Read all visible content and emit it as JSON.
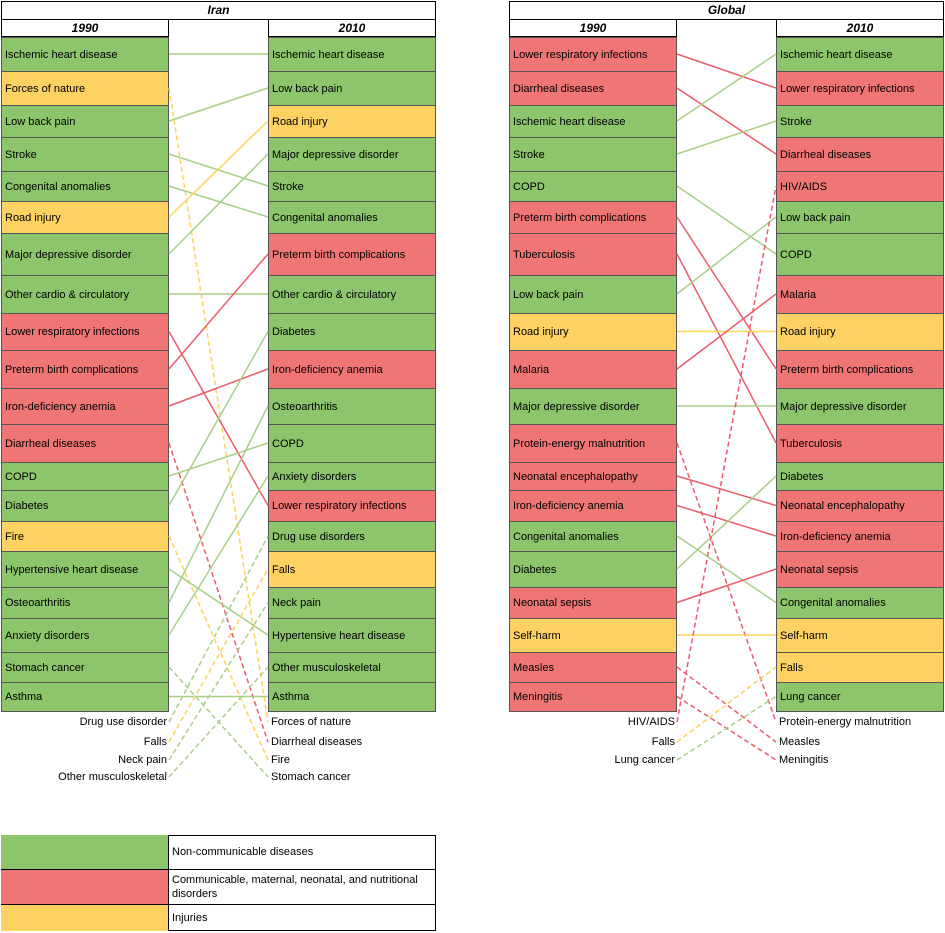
{
  "panels": [
    {
      "id": "iran",
      "title": "Iran",
      "col1_label": "1990",
      "col2_label": "2010",
      "left": [
        {
          "label": "Ischemic heart disease",
          "cat": "ncd"
        },
        {
          "label": "Forces of nature",
          "cat": "inj"
        },
        {
          "label": "Low back pain",
          "cat": "ncd"
        },
        {
          "label": "Stroke",
          "cat": "ncd"
        },
        {
          "label": "Congenital anomalies",
          "cat": "ncd"
        },
        {
          "label": "Road injury",
          "cat": "inj"
        },
        {
          "label": "Major depressive disorder",
          "cat": "ncd"
        },
        {
          "label": "Other cardio & circulatory",
          "cat": "ncd"
        },
        {
          "label": "Lower respiratory infections",
          "cat": "cmnn"
        },
        {
          "label": "Preterm birth complications",
          "cat": "cmnn"
        },
        {
          "label": "Iron-deficiency anemia",
          "cat": "cmnn"
        },
        {
          "label": "Diarrheal diseases",
          "cat": "cmnn"
        },
        {
          "label": "COPD",
          "cat": "ncd"
        },
        {
          "label": "Diabetes",
          "cat": "ncd"
        },
        {
          "label": "Fire",
          "cat": "inj"
        },
        {
          "label": "Hypertensive heart disease",
          "cat": "ncd"
        },
        {
          "label": "Osteoarthritis",
          "cat": "ncd"
        },
        {
          "label": "Anxiety disorders",
          "cat": "ncd"
        },
        {
          "label": "Stomach cancer",
          "cat": "ncd"
        },
        {
          "label": "Asthma",
          "cat": "ncd"
        }
      ],
      "right": [
        {
          "label": "Ischemic heart disease",
          "cat": "ncd"
        },
        {
          "label": "Low back pain",
          "cat": "ncd"
        },
        {
          "label": "Road injury",
          "cat": "inj"
        },
        {
          "label": "Major depressive disorder",
          "cat": "ncd"
        },
        {
          "label": "Stroke",
          "cat": "ncd"
        },
        {
          "label": "Congenital anomalies",
          "cat": "ncd"
        },
        {
          "label": "Preterm birth complications",
          "cat": "cmnn"
        },
        {
          "label": "Other cardio & circulatory",
          "cat": "ncd"
        },
        {
          "label": "Diabetes",
          "cat": "ncd"
        },
        {
          "label": "Iron-deficiency anemia",
          "cat": "cmnn"
        },
        {
          "label": "Osteoarthritis",
          "cat": "ncd"
        },
        {
          "label": "COPD",
          "cat": "ncd"
        },
        {
          "label": "Anxiety disorders",
          "cat": "ncd"
        },
        {
          "label": "Lower respiratory infections",
          "cat": "cmnn"
        },
        {
          "label": "Drug use disorders",
          "cat": "ncd"
        },
        {
          "label": "Falls",
          "cat": "inj"
        },
        {
          "label": "Neck pain",
          "cat": "ncd"
        },
        {
          "label": "Hypertensive heart disease",
          "cat": "ncd"
        },
        {
          "label": "Other musculoskeletal",
          "cat": "ncd"
        },
        {
          "label": "Asthma",
          "cat": "ncd"
        }
      ],
      "left_extra": [
        {
          "label": "Drug use disorder",
          "cat": "ncd"
        },
        {
          "label": "Falls",
          "cat": "inj"
        },
        {
          "label": "Neck pain",
          "cat": "ncd"
        },
        {
          "label": "Other musculoskeletal",
          "cat": "ncd"
        }
      ],
      "right_extra": [
        {
          "label": "Forces of nature",
          "cat": "inj"
        },
        {
          "label": "Diarrheal diseases",
          "cat": "cmnn"
        },
        {
          "label": "Fire",
          "cat": "inj"
        },
        {
          "label": "Stomach cancer",
          "cat": "ncd"
        }
      ],
      "links": [
        {
          "from": "L0",
          "to": "R0",
          "cat": "ncd"
        },
        {
          "from": "L1",
          "to": "RX0",
          "cat": "inj",
          "dashed": true
        },
        {
          "from": "L2",
          "to": "R1",
          "cat": "ncd"
        },
        {
          "from": "L3",
          "to": "R4",
          "cat": "ncd"
        },
        {
          "from": "L4",
          "to": "R5",
          "cat": "ncd"
        },
        {
          "from": "L5",
          "to": "R2",
          "cat": "inj"
        },
        {
          "from": "L6",
          "to": "R3",
          "cat": "ncd"
        },
        {
          "from": "L7",
          "to": "R7",
          "cat": "ncd"
        },
        {
          "from": "L8",
          "to": "R13",
          "cat": "cmnn"
        },
        {
          "from": "L9",
          "to": "R6",
          "cat": "cmnn"
        },
        {
          "from": "L10",
          "to": "R9",
          "cat": "cmnn"
        },
        {
          "from": "L11",
          "to": "RX1",
          "cat": "cmnn",
          "dashed": true
        },
        {
          "from": "L12",
          "to": "R11",
          "cat": "ncd"
        },
        {
          "from": "L13",
          "to": "R8",
          "cat": "ncd"
        },
        {
          "from": "L14",
          "to": "RX2",
          "cat": "inj",
          "dashed": true
        },
        {
          "from": "L15",
          "to": "R17",
          "cat": "ncd"
        },
        {
          "from": "L16",
          "to": "R10",
          "cat": "ncd"
        },
        {
          "from": "L17",
          "to": "R12",
          "cat": "ncd"
        },
        {
          "from": "L18",
          "to": "RX3",
          "cat": "ncd",
          "dashed": true
        },
        {
          "from": "L19",
          "to": "R19",
          "cat": "ncd"
        },
        {
          "from": "LX0",
          "to": "R14",
          "cat": "ncd",
          "dashed": true
        },
        {
          "from": "LX1",
          "to": "R15",
          "cat": "inj",
          "dashed": true
        },
        {
          "from": "LX2",
          "to": "R16",
          "cat": "ncd",
          "dashed": true
        },
        {
          "from": "LX3",
          "to": "R18",
          "cat": "ncd",
          "dashed": true
        }
      ]
    },
    {
      "id": "global",
      "title": "Global",
      "col1_label": "1990",
      "col2_label": "2010",
      "left": [
        {
          "label": "Lower respiratory infections",
          "cat": "cmnn"
        },
        {
          "label": "Diarrheal diseases",
          "cat": "cmnn"
        },
        {
          "label": "Ischemic heart disease",
          "cat": "ncd"
        },
        {
          "label": "Stroke",
          "cat": "ncd"
        },
        {
          "label": "COPD",
          "cat": "ncd"
        },
        {
          "label": "Preterm birth complications",
          "cat": "cmnn"
        },
        {
          "label": "Tuberculosis",
          "cat": "cmnn"
        },
        {
          "label": "Low back pain",
          "cat": "ncd"
        },
        {
          "label": "Road injury",
          "cat": "inj"
        },
        {
          "label": "Malaria",
          "cat": "cmnn"
        },
        {
          "label": "Major depressive disorder",
          "cat": "ncd"
        },
        {
          "label": "Protein-energy malnutrition",
          "cat": "cmnn"
        },
        {
          "label": "Neonatal encephalopathy",
          "cat": "cmnn"
        },
        {
          "label": "Iron-deficiency anemia",
          "cat": "cmnn"
        },
        {
          "label": "Congenital anomalies",
          "cat": "ncd"
        },
        {
          "label": "Diabetes",
          "cat": "ncd"
        },
        {
          "label": "Neonatal sepsis",
          "cat": "cmnn"
        },
        {
          "label": "Self-harm",
          "cat": "inj"
        },
        {
          "label": "Measles",
          "cat": "cmnn"
        },
        {
          "label": "Meningitis",
          "cat": "cmnn"
        }
      ],
      "right": [
        {
          "label": "Ischemic heart disease",
          "cat": "ncd"
        },
        {
          "label": "Lower respiratory infections",
          "cat": "cmnn"
        },
        {
          "label": "Stroke",
          "cat": "ncd"
        },
        {
          "label": "Diarrheal diseases",
          "cat": "cmnn"
        },
        {
          "label": "HIV/AIDS",
          "cat": "cmnn"
        },
        {
          "label": "Low back pain",
          "cat": "ncd"
        },
        {
          "label": "COPD",
          "cat": "ncd"
        },
        {
          "label": "Malaria",
          "cat": "cmnn"
        },
        {
          "label": "Road injury",
          "cat": "inj"
        },
        {
          "label": "Preterm birth complications",
          "cat": "cmnn"
        },
        {
          "label": "Major depressive disorder",
          "cat": "ncd"
        },
        {
          "label": "Tuberculosis",
          "cat": "cmnn"
        },
        {
          "label": "Diabetes",
          "cat": "ncd"
        },
        {
          "label": "Neonatal encephalopathy",
          "cat": "cmnn"
        },
        {
          "label": "Iron-deficiency anemia",
          "cat": "cmnn"
        },
        {
          "label": "Neonatal sepsis",
          "cat": "cmnn"
        },
        {
          "label": "Congenital anomalies",
          "cat": "ncd"
        },
        {
          "label": "Self-harm",
          "cat": "inj"
        },
        {
          "label": "Falls",
          "cat": "inj"
        },
        {
          "label": "Lung cancer",
          "cat": "ncd"
        }
      ],
      "left_extra": [
        {
          "label": "HIV/AIDS",
          "cat": "cmnn"
        },
        {
          "label": "Falls",
          "cat": "inj"
        },
        {
          "label": "Lung cancer",
          "cat": "ncd"
        }
      ],
      "right_extra": [
        {
          "label": "Protein-energy malnutrition",
          "cat": "cmnn"
        },
        {
          "label": "Measles",
          "cat": "cmnn"
        },
        {
          "label": "Meningitis",
          "cat": "cmnn"
        }
      ],
      "links": [
        {
          "from": "L0",
          "to": "R1",
          "cat": "cmnn"
        },
        {
          "from": "L1",
          "to": "R3",
          "cat": "cmnn"
        },
        {
          "from": "L2",
          "to": "R0",
          "cat": "ncd"
        },
        {
          "from": "L3",
          "to": "R2",
          "cat": "ncd"
        },
        {
          "from": "L4",
          "to": "R6",
          "cat": "ncd"
        },
        {
          "from": "L5",
          "to": "R9",
          "cat": "cmnn"
        },
        {
          "from": "L6",
          "to": "R11",
          "cat": "cmnn"
        },
        {
          "from": "L7",
          "to": "R5",
          "cat": "ncd"
        },
        {
          "from": "L8",
          "to": "R8",
          "cat": "inj"
        },
        {
          "from": "L9",
          "to": "R7",
          "cat": "cmnn"
        },
        {
          "from": "L10",
          "to": "R10",
          "cat": "ncd"
        },
        {
          "from": "L11",
          "to": "RX0",
          "cat": "cmnn",
          "dashed": true
        },
        {
          "from": "L12",
          "to": "R13",
          "cat": "cmnn"
        },
        {
          "from": "L13",
          "to": "R14",
          "cat": "cmnn"
        },
        {
          "from": "L14",
          "to": "R16",
          "cat": "ncd"
        },
        {
          "from": "L15",
          "to": "R12",
          "cat": "ncd"
        },
        {
          "from": "L16",
          "to": "R15",
          "cat": "cmnn"
        },
        {
          "from": "L17",
          "to": "R17",
          "cat": "inj"
        },
        {
          "from": "L18",
          "to": "RX1",
          "cat": "cmnn",
          "dashed": true
        },
        {
          "from": "L19",
          "to": "RX2",
          "cat": "cmnn",
          "dashed": true
        },
        {
          "from": "LX0",
          "to": "R4",
          "cat": "cmnn",
          "dashed": true
        },
        {
          "from": "LX1",
          "to": "R18",
          "cat": "inj",
          "dashed": true
        },
        {
          "from": "LX2",
          "to": "R19",
          "cat": "ncd",
          "dashed": true
        }
      ]
    }
  ],
  "legend": [
    {
      "label": "Non-communicable diseases",
      "cat": "ncd"
    },
    {
      "label": "Communicable, maternal, neonatal, and nutritional disorders",
      "cat": "cmnn"
    },
    {
      "label": "Injuries",
      "cat": "inj"
    }
  ],
  "colors": {
    "ncd": "#8cc56b",
    "cmnn": "#f07676",
    "inj": "#fdd262",
    "ncd_line": "#a8cf86",
    "cmnn_line": "#ee5b6a",
    "inj_line": "#fbd45c"
  }
}
